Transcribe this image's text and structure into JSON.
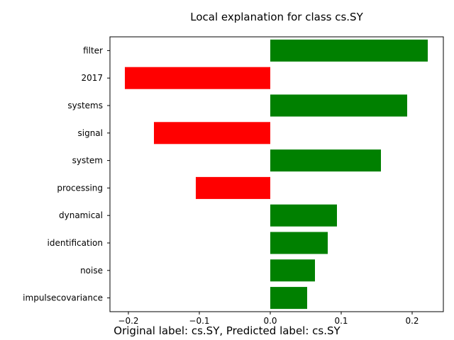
{
  "chart_data": {
    "type": "bar",
    "orientation": "horizontal",
    "title": "Local explanation for class cs.SY",
    "xlabel": "",
    "ylabel": "",
    "categories": [
      "filter",
      "2017",
      "systems",
      "signal",
      "system",
      "processing",
      "dynamical",
      "identification",
      "noise",
      "impulsecovariance"
    ],
    "values": [
      0.222,
      -0.205,
      0.193,
      -0.164,
      0.156,
      -0.105,
      0.094,
      0.081,
      0.063,
      0.052
    ],
    "xlim": [
      -0.226,
      0.244
    ],
    "xticks": [
      -0.2,
      -0.1,
      0.0,
      0.1,
      0.2
    ],
    "xtick_labels": [
      "−0.2",
      "−0.1",
      "0.0",
      "0.1",
      "0.2"
    ],
    "colors": {
      "positive": "#008000",
      "negative": "#ff0000"
    },
    "grid": false,
    "legend": "none"
  },
  "caption": "Original label: cs.SY, Predicted label: cs.SY"
}
